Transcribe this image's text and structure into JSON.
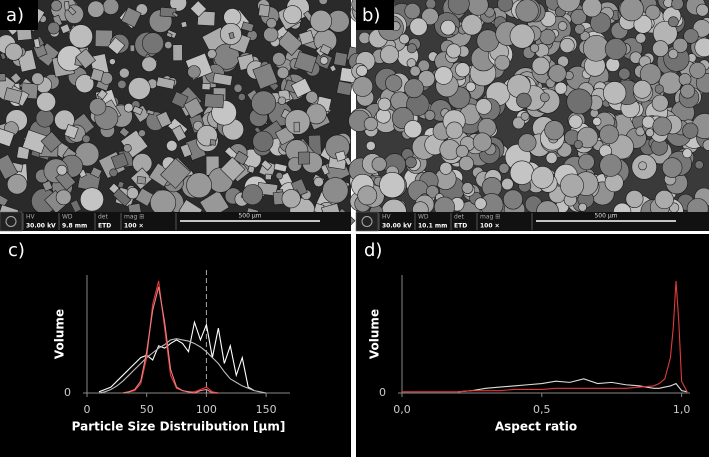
{
  "images": [
    {
      "label": "a)",
      "info": [
        [
          "HV",
          "30.00 kV"
        ],
        [
          "WD",
          "9.8 mm"
        ],
        [
          "det",
          "ETD"
        ],
        [
          "mag ⊞",
          "100 ×"
        ]
      ],
      "scale_bar": "500 µm"
    },
    {
      "label": "b)",
      "info": [
        [
          "HV",
          "30.00 kV"
        ],
        [
          "WD",
          "10.1 mm"
        ],
        [
          "det",
          "ETD"
        ],
        [
          "mag ⊞",
          "100 ×"
        ]
      ],
      "scale_bar": "500 µm"
    }
  ],
  "chart_data": [
    {
      "type": "line",
      "label": "c)",
      "x_label": "Particle Size Distruibution [µm]",
      "y_label": "Volume",
      "x": [
        0,
        5,
        10,
        15,
        20,
        25,
        30,
        35,
        40,
        45,
        50,
        55,
        60,
        65,
        70,
        75,
        80,
        85,
        90,
        95,
        100,
        105,
        110,
        115,
        120,
        125,
        130,
        135,
        140,
        145,
        150,
        155,
        160,
        165,
        170
      ],
      "xlim": [
        0,
        170
      ],
      "xticks": [
        0,
        50,
        100,
        150
      ],
      "ylim": [
        0,
        1
      ],
      "yticks": [
        0
      ],
      "vline": 100,
      "series": [
        {
          "color": "#ffffff",
          "values": [
            null,
            null,
            0.01,
            0.03,
            0.05,
            0.1,
            0.15,
            0.2,
            0.25,
            0.3,
            0.32,
            0.28,
            0.4,
            0.38,
            0.42,
            0.45,
            0.42,
            0.35,
            0.6,
            0.45,
            0.58,
            0.3,
            0.55,
            0.25,
            0.4,
            0.15,
            0.3,
            0.05,
            0.02,
            null,
            null,
            null,
            null,
            null,
            null
          ]
        },
        {
          "color": "#bbbbbb",
          "values": [
            null,
            null,
            0.0,
            0.01,
            0.03,
            0.06,
            0.1,
            0.15,
            0.2,
            0.25,
            0.3,
            0.34,
            0.38,
            0.41,
            0.45,
            0.46,
            0.45,
            0.44,
            0.42,
            0.39,
            0.35,
            0.3,
            0.25,
            0.18,
            0.12,
            0.09,
            0.06,
            0.04,
            0.02,
            0.01,
            0.0,
            null,
            null,
            null,
            null
          ]
        },
        {
          "color": "#e03a3a",
          "values": [
            null,
            null,
            null,
            null,
            null,
            null,
            0.0,
            0.01,
            0.02,
            0.08,
            0.3,
            0.75,
            0.95,
            0.55,
            0.15,
            0.04,
            0.02,
            0.01,
            0.01,
            0.03,
            0.05,
            0.01,
            0.0,
            null,
            null,
            null,
            null,
            null,
            null,
            null,
            null,
            null,
            null,
            null,
            null
          ]
        },
        {
          "color": "#f08080",
          "values": [
            null,
            null,
            null,
            null,
            null,
            null,
            0.0,
            0.01,
            0.03,
            0.1,
            0.35,
            0.7,
            0.9,
            0.6,
            0.2,
            0.05,
            0.02,
            0.01,
            0.0,
            0.02,
            0.03,
            0.0,
            0.0,
            null,
            null,
            null,
            null,
            null,
            null,
            null,
            null,
            null,
            null,
            null,
            null
          ]
        }
      ]
    },
    {
      "type": "line",
      "label": "d)",
      "x_label": "Aspect ratio",
      "y_label": "Volume",
      "x": [
        0,
        0.05,
        0.1,
        0.15,
        0.2,
        0.25,
        0.3,
        0.35,
        0.4,
        0.45,
        0.5,
        0.55,
        0.6,
        0.65,
        0.7,
        0.75,
        0.8,
        0.85,
        0.9,
        0.92,
        0.94,
        0.96,
        0.97,
        0.98,
        0.99,
        1.0,
        1.02
      ],
      "xlim": [
        0,
        1.03
      ],
      "xticks": [
        {
          "value": 0,
          "label": "0,0"
        },
        {
          "value": 0.5,
          "label": "0,5"
        },
        {
          "value": 1,
          "label": "1,0"
        }
      ],
      "ylim": [
        0,
        1
      ],
      "yticks": [
        0
      ],
      "series": [
        {
          "color": "#dddddd",
          "values": [
            null,
            null,
            null,
            null,
            0.01,
            0.02,
            0.04,
            0.05,
            0.06,
            0.07,
            0.08,
            0.1,
            0.09,
            0.12,
            0.08,
            0.09,
            0.07,
            0.06,
            0.04,
            0.04,
            0.05,
            0.06,
            0.07,
            0.08,
            0.05,
            0.02,
            0.01
          ]
        },
        {
          "color": "#e03a3a",
          "values": [
            0.01,
            0.01,
            0.01,
            0.01,
            0.01,
            0.02,
            0.02,
            0.02,
            0.03,
            0.03,
            0.03,
            0.04,
            0.04,
            0.04,
            0.04,
            0.04,
            0.04,
            0.05,
            0.06,
            0.08,
            0.12,
            0.3,
            0.55,
            0.95,
            0.6,
            0.1,
            0.01
          ]
        }
      ]
    }
  ]
}
